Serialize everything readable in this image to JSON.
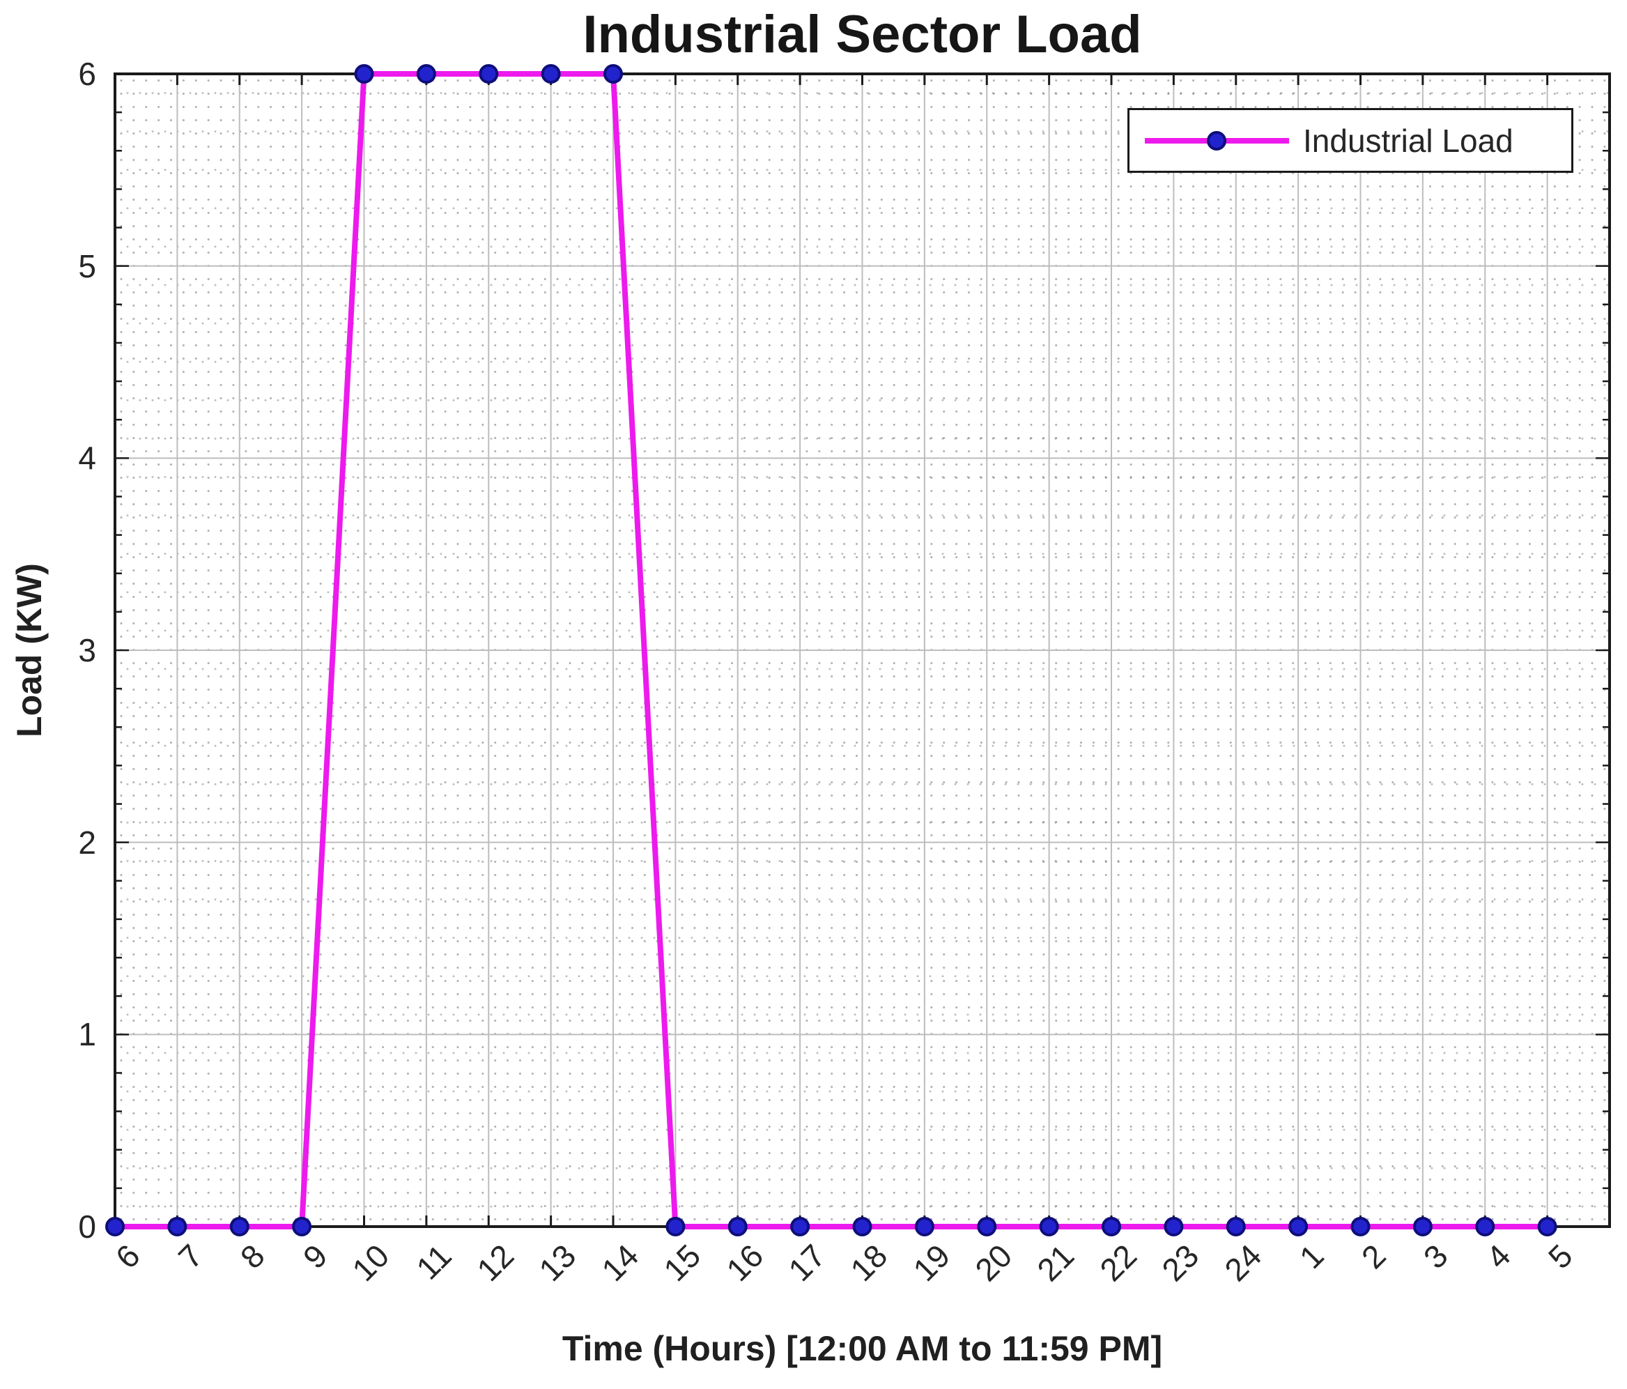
{
  "chart_data": {
    "type": "line",
    "title": "Industrial Sector Load",
    "xlabel": "Time (Hours) [12:00 AM to 11:59 PM]",
    "ylabel": "Load (KW)",
    "categories": [
      "6",
      "7",
      "8",
      "9",
      "10",
      "11",
      "12",
      "13",
      "14",
      "15",
      "16",
      "17",
      "18",
      "19",
      "20",
      "21",
      "22",
      "23",
      "24",
      "1",
      "2",
      "3",
      "4",
      "5"
    ],
    "series": [
      {
        "name": "Industrial Load",
        "values": [
          0,
          0,
          0,
          0,
          6,
          6,
          6,
          6,
          6,
          0,
          0,
          0,
          0,
          0,
          0,
          0,
          0,
          0,
          0,
          0,
          0,
          0,
          0,
          0
        ]
      }
    ],
    "ylim": [
      0,
      6
    ],
    "yticks": [
      0,
      1,
      2,
      3,
      4,
      5,
      6
    ],
    "grid": "major solid gray + dotted minor grid",
    "legend_position": "top-right-inside",
    "marker": "filled-circle",
    "colors": {
      "line": "#ED1AED",
      "marker_fill": "#2323CE",
      "marker_edge": "#0E0E7A",
      "grid_major": "#bdbdbd",
      "axis_box": "#1a1a1a",
      "text": "#262626"
    }
  }
}
